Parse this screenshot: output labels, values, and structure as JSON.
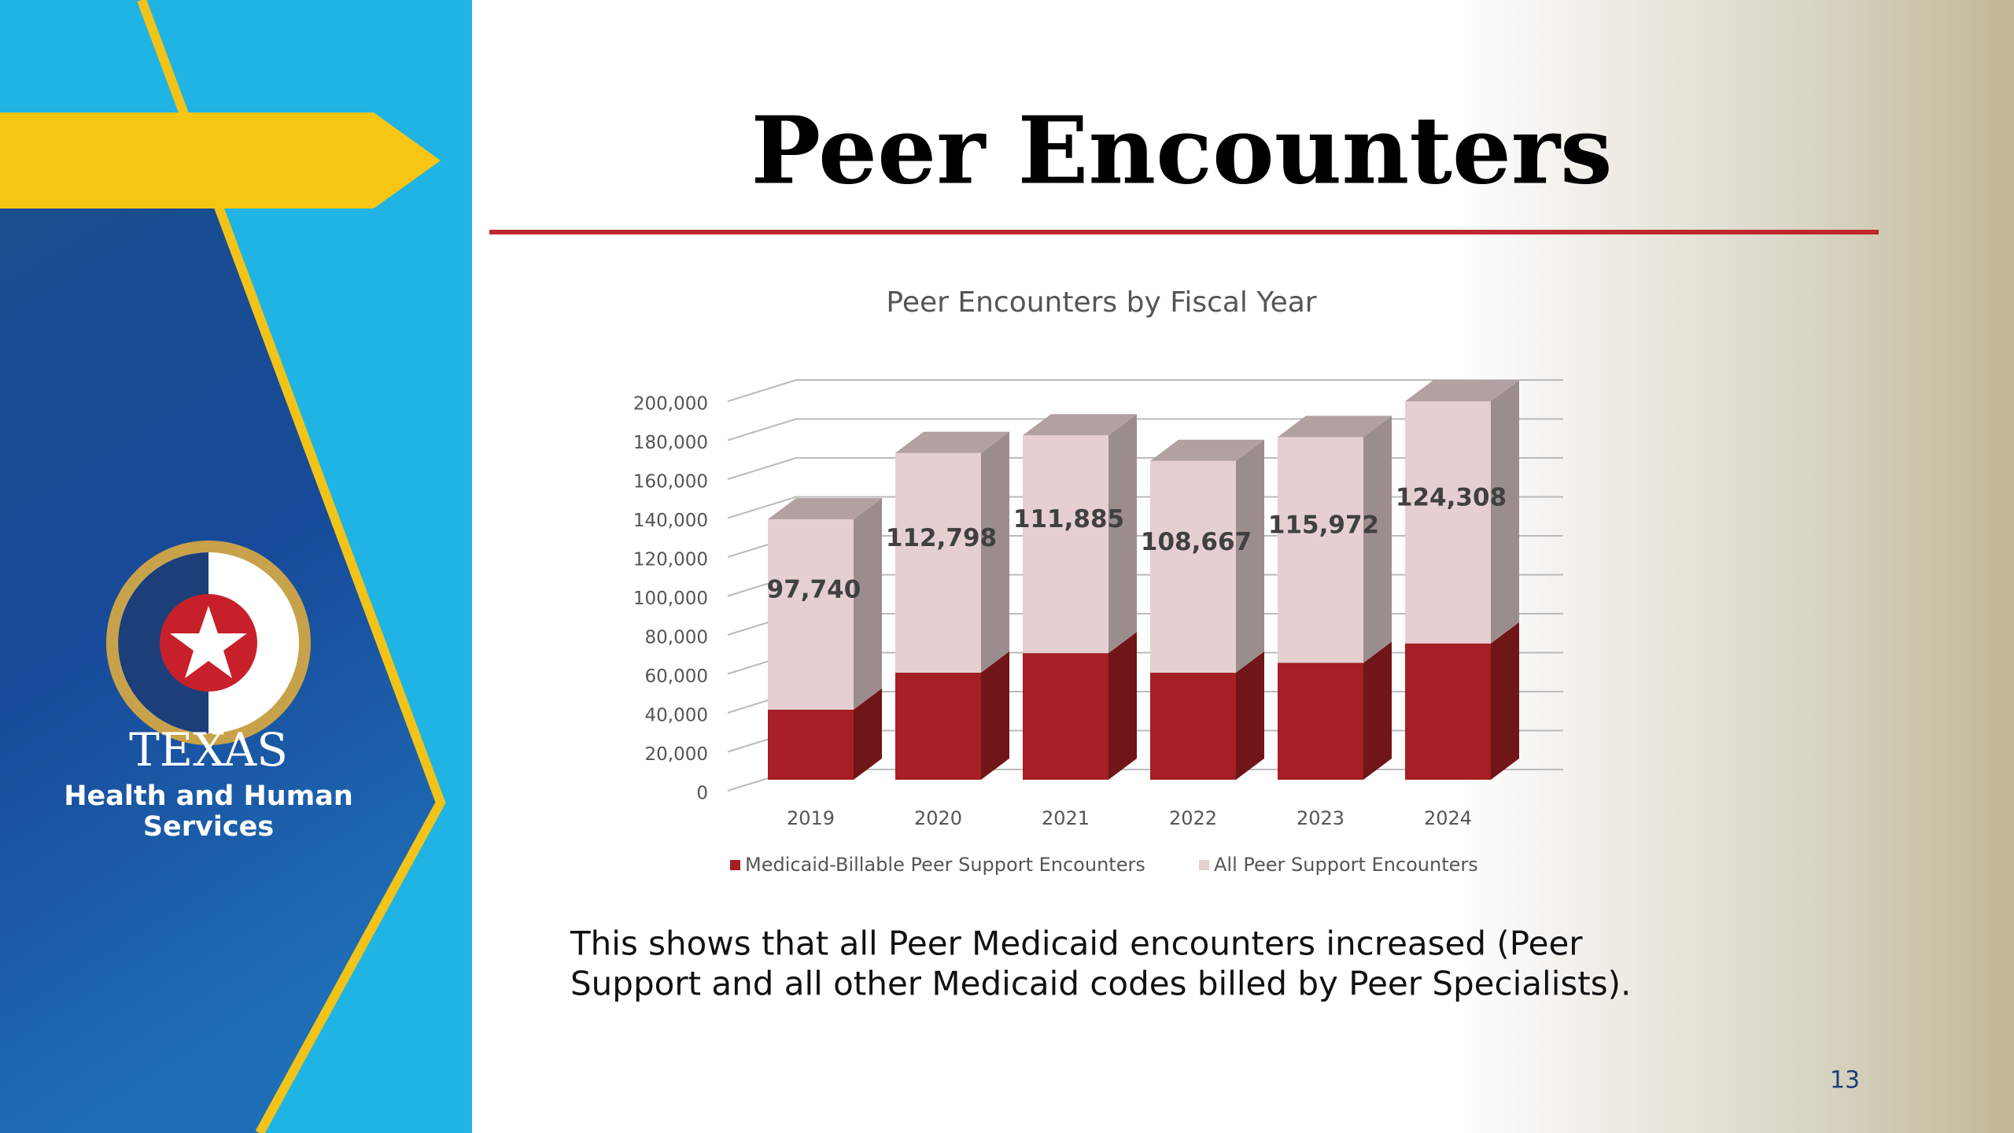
{
  "slide": {
    "title": "Peer Encounters",
    "logo_lines": [
      "TEXAS",
      "Health and Human",
      "Services"
    ],
    "caption_lines": [
      "This shows that all Peer Medicaid encounters increased (Peer",
      "Support and all other Medicaid codes billed by Peer Specialists)."
    ],
    "page_number": "13"
  },
  "chart_data": {
    "type": "bar3d_stacked",
    "title": "Peer Encounters by Fiscal Year",
    "categories": [
      "2019",
      "2020",
      "2021",
      "2022",
      "2023",
      "2024"
    ],
    "series": [
      {
        "name": "Medicaid-Billable Peer Support Encounters",
        "color": "#a51f24",
        "values": [
          36000,
          55000,
          65000,
          55000,
          60000,
          70000
        ]
      },
      {
        "name": "All Peer Support Encounters",
        "color": "#e6cfd0",
        "values": [
          97740,
          112798,
          111885,
          108667,
          115972,
          124308
        ],
        "value_labels": [
          "97,740",
          "112,798",
          "111,885",
          "108,667",
          "115,972",
          "124,308"
        ]
      }
    ],
    "ylim": [
      0,
      200000
    ],
    "yticks": [
      0,
      {
        "value": 20000,
        "label": "20,000"
      },
      {
        "value": 40000,
        "label": "40,000"
      },
      {
        "value": 60000,
        "label": "60,000"
      },
      {
        "value": 80000,
        "label": "80,000"
      },
      {
        "value": 100000,
        "label": "100,000"
      },
      {
        "value": 120000,
        "label": "120,000"
      },
      {
        "value": 140000,
        "label": "140,000"
      },
      {
        "value": 160000,
        "label": "160,000"
      },
      {
        "value": 180000,
        "label": "180,000"
      },
      {
        "value": 200000,
        "label": "200,000"
      }
    ],
    "grid": true,
    "legend": "bottom"
  }
}
